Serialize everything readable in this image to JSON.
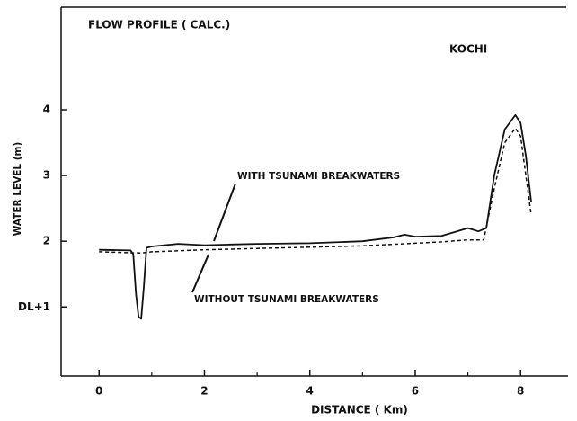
{
  "chart_data": {
    "type": "line",
    "title": "FLOW PROFILE ( CALC.)",
    "subtitle": "KOCHI",
    "xlabel": "DISTANCE  ( Km)",
    "ylabel": "WATER LEVEL  (m)",
    "xlim": [
      -0.72,
      8.9
    ],
    "ylim": [
      -0.05,
      5.56
    ],
    "xticks": [
      0,
      2,
      4,
      6,
      8
    ],
    "xminor_ticks": [
      1,
      3,
      5,
      7
    ],
    "yticks": [
      {
        "value": 1,
        "label": "DL+1"
      },
      2,
      3,
      4
    ],
    "series": [
      {
        "name": "WITH TSUNAMI BREAKWATERS",
        "color": "#111111",
        "dash": false,
        "x": [
          0,
          0.6,
          0.65,
          0.7,
          0.75,
          0.8,
          0.85,
          0.9,
          1.0,
          1.5,
          2.0,
          2.5,
          3.0,
          4.0,
          5.0,
          5.6,
          5.8,
          6.0,
          6.5,
          7.0,
          7.2,
          7.35,
          7.5,
          7.7,
          7.9,
          8.0,
          8.1,
          8.2
        ],
        "values": [
          1.87,
          1.86,
          1.8,
          1.2,
          0.85,
          0.82,
          1.3,
          1.9,
          1.92,
          1.96,
          1.94,
          1.95,
          1.96,
          1.97,
          2.0,
          2.06,
          2.1,
          2.07,
          2.08,
          2.2,
          2.15,
          2.2,
          3.0,
          3.7,
          3.92,
          3.8,
          3.3,
          2.6
        ]
      },
      {
        "name": "WITHOUT TSUNAMI BREAKWATERS",
        "color": "#111111",
        "dash": true,
        "x": [
          0,
          0.8,
          1.0,
          2.0,
          3.0,
          4.0,
          5.0,
          6.0,
          6.5,
          7.0,
          7.3,
          7.5,
          7.7,
          7.9,
          8.0,
          8.1,
          8.2
        ],
        "values": [
          1.84,
          1.82,
          1.84,
          1.87,
          1.89,
          1.91,
          1.93,
          1.97,
          1.99,
          2.02,
          2.02,
          2.8,
          3.5,
          3.72,
          3.6,
          3.0,
          2.4
        ]
      }
    ]
  }
}
